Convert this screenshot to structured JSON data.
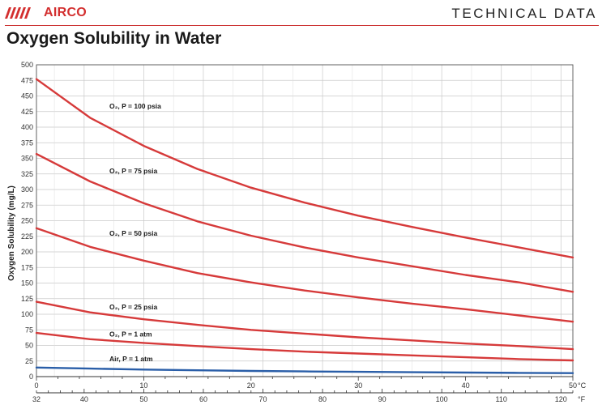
{
  "header": {
    "brand": "AIRCO",
    "section": "TECHNICAL DATA"
  },
  "page_title": "Oxygen Solubility in Water",
  "colors": {
    "brand_red": "#d32f2f",
    "curve_red": "#d63a3a",
    "air_blue": "#2a5ea8",
    "grid": "#c9c9c9"
  },
  "chart_data": {
    "type": "line",
    "title": "Oxygen Solubility in Water",
    "ylabel": "Oxygen Solubility (mg/L)",
    "xlim": [
      0,
      50
    ],
    "ylim": [
      0,
      500
    ],
    "grid": true,
    "x_unit_c": "°C",
    "x_unit_f": "°F",
    "y_ticks": [
      0,
      25,
      50,
      75,
      100,
      125,
      150,
      175,
      200,
      225,
      250,
      275,
      300,
      325,
      350,
      375,
      400,
      425,
      450,
      475,
      500
    ],
    "x_ticks_c": [
      0,
      10,
      20,
      30,
      40,
      50
    ],
    "x_ticks_f": [
      32,
      40,
      50,
      60,
      70,
      80,
      90,
      100,
      110,
      120
    ],
    "x": [
      0,
      5,
      10,
      15,
      20,
      25,
      30,
      35,
      40,
      45,
      50
    ],
    "series": [
      {
        "name": "O₂, P = 100 psia",
        "color": "#d63a3a",
        "values": [
          477,
          415,
          370,
          333,
          303,
          279,
          258,
          240,
          223,
          207,
          191
        ]
      },
      {
        "name": "O₂, P = 75 psia",
        "color": "#d63a3a",
        "values": [
          357,
          313,
          278,
          249,
          226,
          207,
          191,
          177,
          163,
          151,
          136
        ]
      },
      {
        "name": "O₂, P = 50 psia",
        "color": "#d63a3a",
        "values": [
          238,
          208,
          186,
          166,
          151,
          138,
          127,
          117,
          108,
          98,
          88
        ]
      },
      {
        "name": "O₂, P = 25 psia",
        "color": "#d63a3a",
        "values": [
          120,
          103,
          92,
          83,
          75,
          69,
          63,
          58,
          53,
          49,
          44
        ]
      },
      {
        "name": "O₂, P = 1 atm",
        "color": "#d63a3a",
        "values": [
          70,
          60,
          54,
          49,
          44,
          40,
          37,
          34,
          31,
          28,
          26
        ]
      },
      {
        "name": "Air, P = 1 atm",
        "color": "#2a5ea8",
        "values": [
          14.6,
          12.8,
          11.3,
          10.1,
          9.1,
          8.3,
          7.6,
          7.0,
          6.5,
          6.0,
          5.6
        ]
      }
    ],
    "annotations": [
      {
        "text": "O₂, P = 100 psia",
        "x": 6.8,
        "y": 430
      },
      {
        "text": "O₂, P = 75 psia",
        "x": 6.8,
        "y": 326
      },
      {
        "text": "O₂, P = 50 psia",
        "x": 6.8,
        "y": 226
      },
      {
        "text": "O₂, P = 25 psia",
        "x": 6.8,
        "y": 108
      },
      {
        "text": "O₂, P = 1 atm",
        "x": 6.8,
        "y": 64
      },
      {
        "text": "Air, P = 1 atm",
        "x": 6.8,
        "y": 25
      }
    ]
  }
}
